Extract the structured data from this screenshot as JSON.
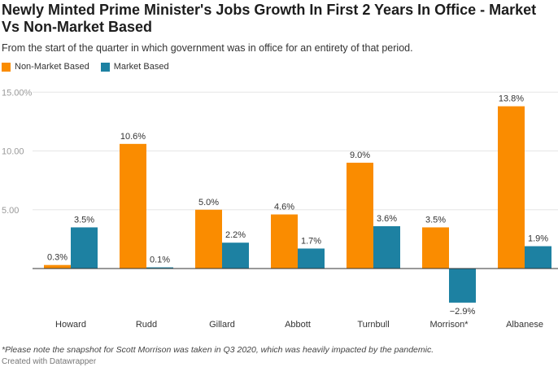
{
  "chart_data": {
    "type": "bar",
    "title": "Newly Minted Prime Minister's Jobs Growth In First 2 Years In Office - Market Vs Non-Market Based",
    "subtitle": "From the start of the quarter in which government was in office for an entirety of that period.",
    "categories": [
      "Howard",
      "Rudd",
      "Gillard",
      "Abbott",
      "Turnbull",
      "Morrison*",
      "Albanese"
    ],
    "series": [
      {
        "name": "Non-Market Based",
        "color": "#fa8c00",
        "values": [
          0.3,
          10.6,
          5.0,
          4.6,
          9.0,
          3.5,
          13.8
        ],
        "labels": [
          "0.3%",
          "10.6%",
          "5.0%",
          "4.6%",
          "9.0%",
          "3.5%",
          "13.8%"
        ]
      },
      {
        "name": "Market Based",
        "color": "#1d81a2",
        "values": [
          3.5,
          0.1,
          2.2,
          1.7,
          3.6,
          -2.9,
          1.9
        ],
        "labels": [
          "3.5%",
          "0.1%",
          "2.2%",
          "1.7%",
          "3.6%",
          "−2.9%",
          "1.9%"
        ]
      }
    ],
    "yticks": [
      {
        "v": 5,
        "label": "5.00"
      },
      {
        "v": 10,
        "label": "10.00"
      },
      {
        "v": 15,
        "label": "15.00%"
      }
    ],
    "ylim": [
      -3,
      15
    ],
    "grid": true,
    "legend": "top-left",
    "note": "*Please note the snapshot for Scott Morrison was taken in Q3 2020, which was heavily impacted by the pandemic.",
    "credit": "Created with Datawrapper"
  }
}
